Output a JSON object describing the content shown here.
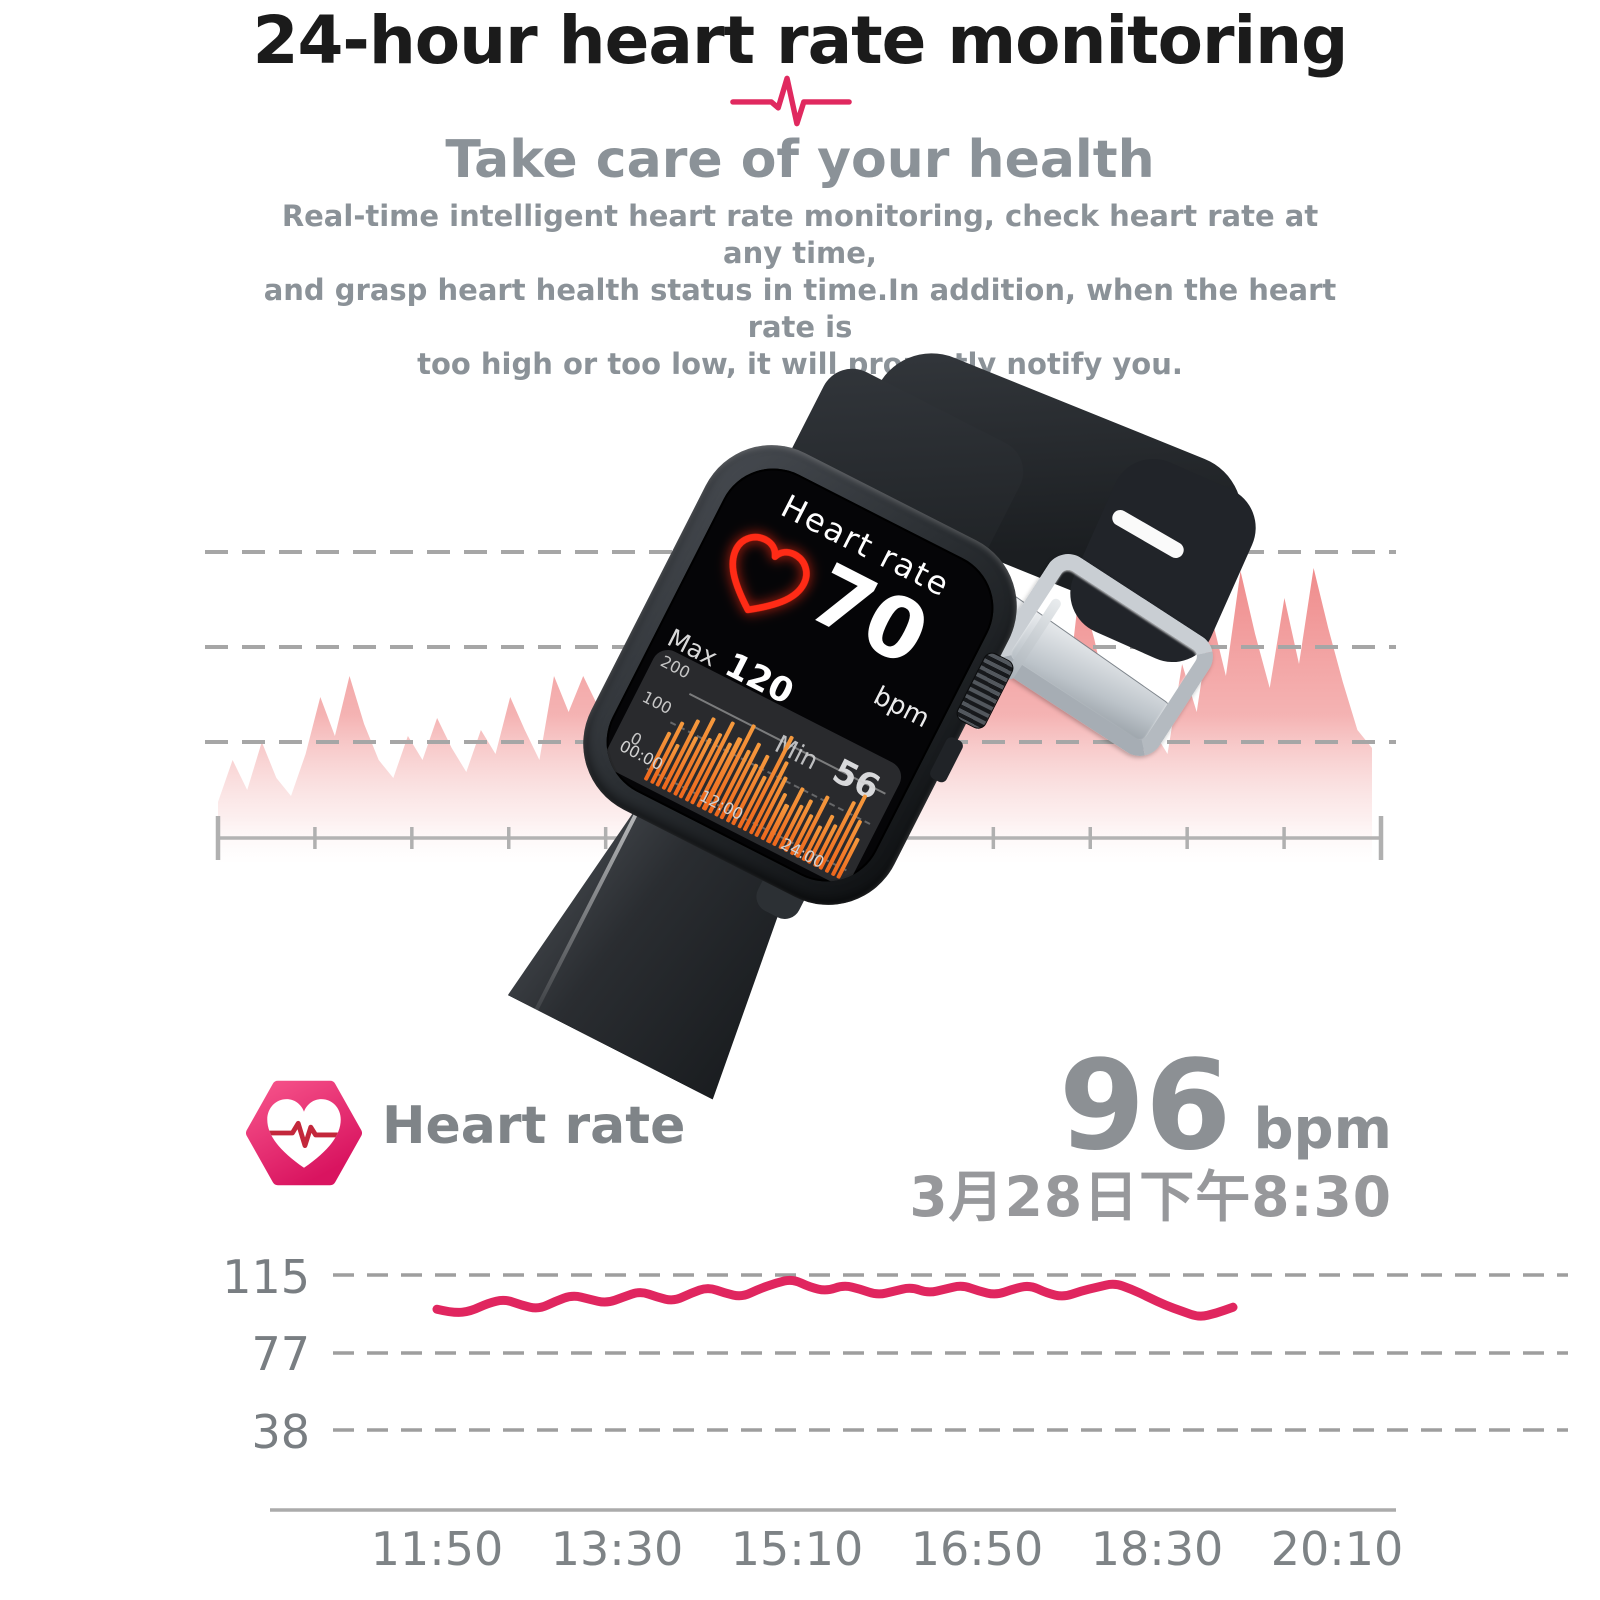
{
  "colors": {
    "accent_pink": "#e0295f",
    "wave_salmon": "#ee8181",
    "bar_orange": "#f07a2e",
    "text_gray": "#8b9298",
    "title_black": "#1b1b1b",
    "icon_gradient_top": "#f6538a",
    "icon_gradient_bottom": "#d91460",
    "axis_gray": "#b3b3b3"
  },
  "header": {
    "title": "24-hour heart rate monitoring",
    "pulse_icon": "ecg-pulse-icon",
    "subtitle": "Take care of your health",
    "description_lines": [
      "Real-time intelligent heart rate monitoring, check heart rate at any time,",
      "and grasp heart health status in time.In addition, when the heart rate is",
      "too high or too low, it will promptly notify you."
    ]
  },
  "hero": {
    "axis_tick_count": 13,
    "gridline_count": 3,
    "wave_heights": [
      20,
      34,
      24,
      40,
      28,
      22,
      36,
      55,
      42,
      62,
      46,
      34,
      28,
      42,
      34,
      48,
      38,
      30,
      44,
      36,
      55,
      44,
      34,
      62,
      50,
      62,
      52,
      58,
      44,
      36,
      50,
      42,
      64,
      50,
      40,
      92,
      46,
      58,
      42,
      66,
      52,
      44,
      72,
      58,
      48,
      70,
      55,
      42,
      60,
      46,
      38,
      54,
      44,
      99,
      80,
      66,
      86,
      60,
      50,
      92,
      74,
      52,
      40,
      56,
      44,
      36,
      66,
      50,
      82,
      62,
      97,
      76,
      58,
      88,
      66,
      98,
      78,
      60,
      44,
      38
    ]
  },
  "watch": {
    "screen": {
      "title": "Heart rate",
      "heart_icon": "neon-heart-icon",
      "value": "70",
      "unit": "bpm",
      "max_label": "Max",
      "max_value": "120",
      "min_label": "Min",
      "min_value": "56",
      "chart": {
        "type": "bar",
        "y_ticks": [
          "200",
          "100",
          "0"
        ],
        "x_ticks": [
          "00:00",
          "12:00",
          "24:00"
        ],
        "bars": [
          48,
          62,
          42,
          70,
          55,
          78,
          60,
          68,
          82,
          64,
          72,
          88,
          66,
          76,
          58,
          70,
          52,
          95,
          72,
          60,
          46,
          38,
          58,
          44,
          52,
          40,
          62,
          35,
          48,
          42,
          68,
          78,
          55,
          40
        ]
      }
    }
  },
  "app_panel": {
    "icon": "heart-rate-app-icon",
    "label": "Heart rate",
    "value": "96",
    "unit": "bpm",
    "datetime": "3月28日下午8:30",
    "chart": {
      "type": "line",
      "line_color": "#e0265f",
      "y_ticks": [
        "115",
        "77",
        "38"
      ],
      "x_ticks": [
        "11:50",
        "13:30",
        "15:10",
        "16:50",
        "18:30",
        "20:10"
      ],
      "values_bpm": [
        98,
        96,
        97,
        101,
        103,
        100,
        98,
        102,
        105,
        103,
        101,
        104,
        107,
        104,
        102,
        106,
        109,
        106,
        104,
        108,
        111,
        113,
        109,
        107,
        110,
        108,
        105,
        107,
        109,
        106,
        108,
        110,
        107,
        105,
        108,
        110,
        106,
        104,
        107,
        109,
        111,
        108,
        104,
        100,
        97,
        94,
        96,
        99
      ]
    }
  }
}
